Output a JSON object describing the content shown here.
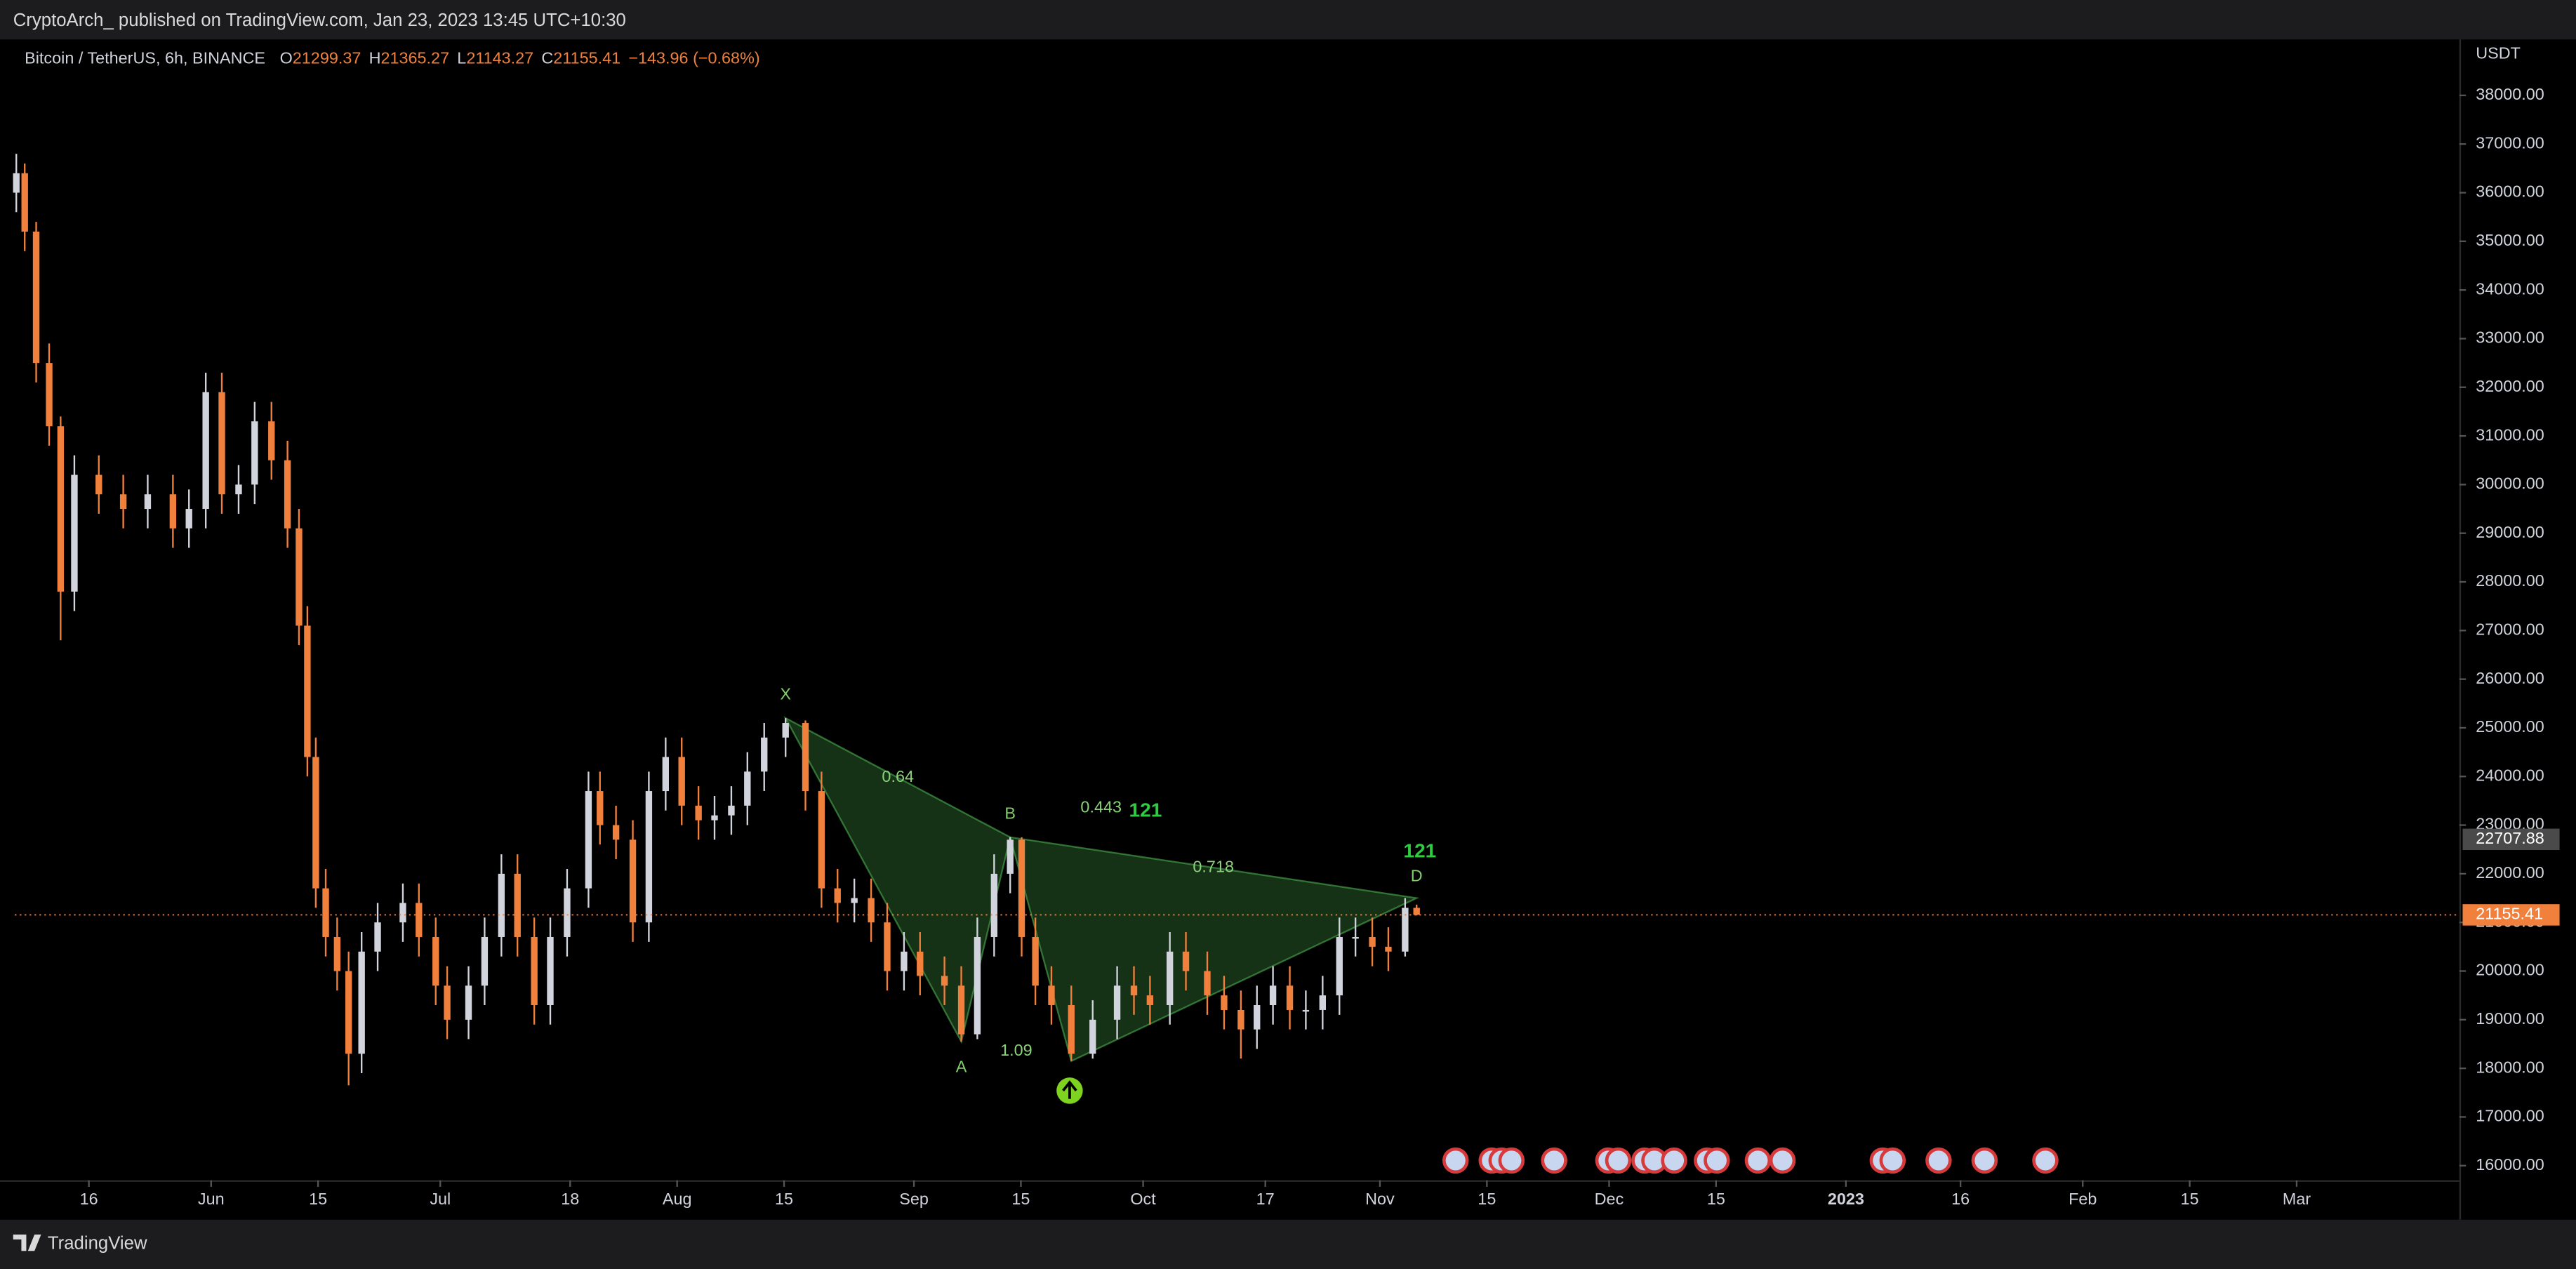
{
  "header": {
    "publisher": "CryptoArch_ published on TradingView.com, Jan 23, 2023 13:45 UTC+10:30",
    "brand": "TradingView"
  },
  "chart_data": {
    "type": "candlestick",
    "symbol": "Bitcoin / TetherUS, 6h, BINANCE",
    "legend_letters": [
      "O",
      "H",
      "L",
      "C"
    ],
    "change_label": "−143.96 (−0.68%)",
    "y_axis_label": "USDT",
    "up_color": "#d1d4dc",
    "down_color": "#f0803c",
    "grid": false,
    "xlim": [
      5.3,
      325.3
    ],
    "ylim": [
      15700,
      39150
    ],
    "xticks": [
      {
        "value": 15,
        "label": "16"
      },
      {
        "value": 31,
        "label": "Jun"
      },
      {
        "value": 45,
        "label": "15"
      },
      {
        "value": 61,
        "label": "Jul"
      },
      {
        "value": 78,
        "label": "18"
      },
      {
        "value": 92,
        "label": "Aug"
      },
      {
        "value": 106,
        "label": "15"
      },
      {
        "value": 123,
        "label": "Sep"
      },
      {
        "value": 137,
        "label": "15"
      },
      {
        "value": 153,
        "label": "Oct"
      },
      {
        "value": 169,
        "label": "17"
      },
      {
        "value": 184,
        "label": "Nov"
      },
      {
        "value": 198,
        "label": "15"
      },
      {
        "value": 214,
        "label": "Dec"
      },
      {
        "value": 228,
        "label": "15"
      },
      {
        "value": 245,
        "label": "2023"
      },
      {
        "value": 260,
        "label": "16"
      },
      {
        "value": 276,
        "label": "Feb"
      },
      {
        "value": 290,
        "label": "15"
      },
      {
        "value": 304,
        "label": "Mar"
      }
    ],
    "yticks": [
      {
        "value": 16000,
        "label": "16000.00"
      },
      {
        "value": 17000,
        "label": "17000.00"
      },
      {
        "value": 18000,
        "label": "18000.00"
      },
      {
        "value": 19000,
        "label": "19000.00"
      },
      {
        "value": 20000,
        "label": "20000.00"
      },
      {
        "value": 21000,
        "label": "21000.00"
      },
      {
        "value": 22000,
        "label": "22000.00"
      },
      {
        "value": 23000,
        "label": "23000.00"
      },
      {
        "value": 24000,
        "label": "24000.00"
      },
      {
        "value": 25000,
        "label": "25000.00"
      },
      {
        "value": 26000,
        "label": "26000.00"
      },
      {
        "value": 27000,
        "label": "27000.00"
      },
      {
        "value": 28000,
        "label": "28000.00"
      },
      {
        "value": 29000,
        "label": "29000.00"
      },
      {
        "value": 30000,
        "label": "30000.00"
      },
      {
        "value": 31000,
        "label": "31000.00"
      },
      {
        "value": 32000,
        "label": "32000.00"
      },
      {
        "value": 33000,
        "label": "33000.00"
      },
      {
        "value": 34000,
        "label": "34000.00"
      },
      {
        "value": 35000,
        "label": "35000.00"
      },
      {
        "value": 36000,
        "label": "36000.00"
      },
      {
        "value": 37000,
        "label": "37000.00"
      },
      {
        "value": 38000,
        "label": "38000.00"
      }
    ],
    "x": [
      5.5,
      6.6,
      8.1,
      9.8,
      11.3,
      13.1,
      16.3,
      19.5,
      22.7,
      26,
      28.1,
      30.3,
      32.4,
      34.6,
      36.7,
      38.9,
      41,
      42.5,
      43.6,
      44.7,
      46,
      47.5,
      49,
      50.7,
      52.8,
      56.1,
      58.2,
      60.4,
      61.9,
      64.7,
      66.8,
      69,
      71.1,
      73.3,
      75.4,
      77.6,
      80.4,
      81.9,
      84,
      86.2,
      88.3,
      90.5,
      92.6,
      94.8,
      96.9,
      99.1,
      101.2,
      103.4,
      106.2,
      108.8,
      110.9,
      113,
      115.2,
      117.4,
      119.5,
      121.7,
      123.8,
      127,
      129.2,
      131.3,
      133.5,
      135.6,
      137.1,
      138.9,
      141,
      143.6,
      146.4,
      149.6,
      151.8,
      153.9,
      156.5,
      158.6,
      161.4,
      163.6,
      165.8,
      167.9,
      170,
      172.2,
      174.3,
      176.5,
      178.7,
      180.8,
      183,
      185.1,
      187.3,
      188.8
    ],
    "open": [
      36000,
      36400,
      35200,
      32500,
      31200,
      27800,
      30200,
      29800,
      29500,
      29800,
      29100,
      29500,
      31900,
      29800,
      30000,
      31300,
      30500,
      29100,
      27100,
      24400,
      21700,
      20700,
      20000,
      18300,
      20400,
      21000,
      21400,
      20700,
      19700,
      19000,
      19700,
      20700,
      22000,
      20700,
      19300,
      20700,
      21700,
      23700,
      23000,
      22700,
      21000,
      23700,
      24400,
      23400,
      23100,
      23200,
      23400,
      24100,
      24800,
      25100,
      23700,
      21700,
      21400,
      21500,
      21000,
      20000,
      20400,
      19900,
      19700,
      18700,
      20700,
      22000,
      22700,
      20700,
      19700,
      19300,
      18300,
      19000,
      19700,
      19500,
      19300,
      20400,
      20000,
      19500,
      19200,
      18800,
      19300,
      19700,
      19200,
      19200,
      19500,
      20700,
      20700,
      20500,
      20400,
      21299.37
    ],
    "high": [
      36800,
      36600,
      35400,
      32900,
      31400,
      30600,
      30600,
      30200,
      30200,
      30200,
      29900,
      32300,
      32300,
      30400,
      31700,
      31700,
      30900,
      29500,
      27500,
      24800,
      22100,
      21100,
      20400,
      20800,
      21400,
      21800,
      21800,
      21100,
      20100,
      20100,
      21100,
      22400,
      22400,
      21100,
      21100,
      22100,
      24100,
      24100,
      23400,
      23100,
      24100,
      24800,
      24800,
      23800,
      23600,
      23800,
      24500,
      25100,
      25200,
      25150,
      24100,
      22100,
      21900,
      21900,
      21400,
      20800,
      20800,
      20300,
      20100,
      21100,
      22400,
      22750,
      22750,
      21100,
      20100,
      19700,
      19400,
      20100,
      20100,
      19900,
      20800,
      20800,
      20400,
      19900,
      19600,
      19700,
      20100,
      20100,
      19600,
      19900,
      21100,
      21100,
      21100,
      20900,
      21500,
      21365.27
    ],
    "low": [
      35600,
      34800,
      32100,
      30800,
      26800,
      27400,
      29400,
      29100,
      29100,
      28700,
      28700,
      29100,
      29400,
      29400,
      29600,
      30100,
      28700,
      26700,
      24000,
      21300,
      20300,
      19600,
      17650,
      17900,
      20000,
      20600,
      20300,
      19300,
      18600,
      18600,
      19300,
      20300,
      20300,
      18900,
      18900,
      20300,
      21300,
      22600,
      22300,
      20600,
      20600,
      23300,
      23000,
      22700,
      22700,
      22800,
      23000,
      23700,
      24400,
      23300,
      21300,
      21000,
      21000,
      20600,
      19600,
      19600,
      19500,
      19300,
      18550,
      18600,
      20300,
      21600,
      20300,
      19300,
      18900,
      18150,
      18200,
      18600,
      19100,
      18900,
      18900,
      19600,
      19100,
      18800,
      18200,
      18400,
      18900,
      18800,
      18800,
      18800,
      19100,
      20300,
      20100,
      20000,
      20300,
      21143.27
    ],
    "close": [
      36400,
      35200,
      32500,
      31200,
      27800,
      30200,
      29800,
      29500,
      29800,
      29100,
      29500,
      31900,
      29800,
      30000,
      31300,
      30500,
      29100,
      27100,
      24400,
      21700,
      20700,
      20000,
      18300,
      20400,
      21000,
      21400,
      20700,
      19700,
      19000,
      19700,
      20700,
      22000,
      20700,
      19300,
      20700,
      21700,
      23700,
      23000,
      22700,
      21000,
      23700,
      24400,
      23400,
      23100,
      23200,
      23400,
      24100,
      24800,
      25100,
      23700,
      21700,
      21400,
      21500,
      21000,
      20000,
      20400,
      19900,
      19700,
      18700,
      20700,
      22000,
      22700,
      20700,
      19700,
      19300,
      18300,
      19000,
      19700,
      19500,
      19300,
      20400,
      20000,
      19500,
      19200,
      18800,
      19300,
      19700,
      19200,
      19200,
      19500,
      20700,
      20700,
      20500,
      20400,
      21299.37,
      21155.41
    ],
    "price_markers": [
      {
        "value": 22707.88,
        "color": "#4a4a4a"
      },
      {
        "value": 21155.41,
        "color": "#f0803c"
      }
    ],
    "pattern": {
      "color": "#4caf50",
      "points": [
        {
          "label": "X",
          "x": 106.2,
          "y": 25200
        },
        {
          "label": "A",
          "x": 129.2,
          "y": 18550
        },
        {
          "label": "B",
          "x": 135.6,
          "y": 22750
        },
        {
          "x": 143.6,
          "y": 18150
        },
        {
          "label": "D",
          "x": 188.8,
          "y": 21500
        }
      ],
      "ratios": [
        "0.64",
        "0.443",
        "0.718",
        "1.09"
      ],
      "name": "121"
    }
  }
}
